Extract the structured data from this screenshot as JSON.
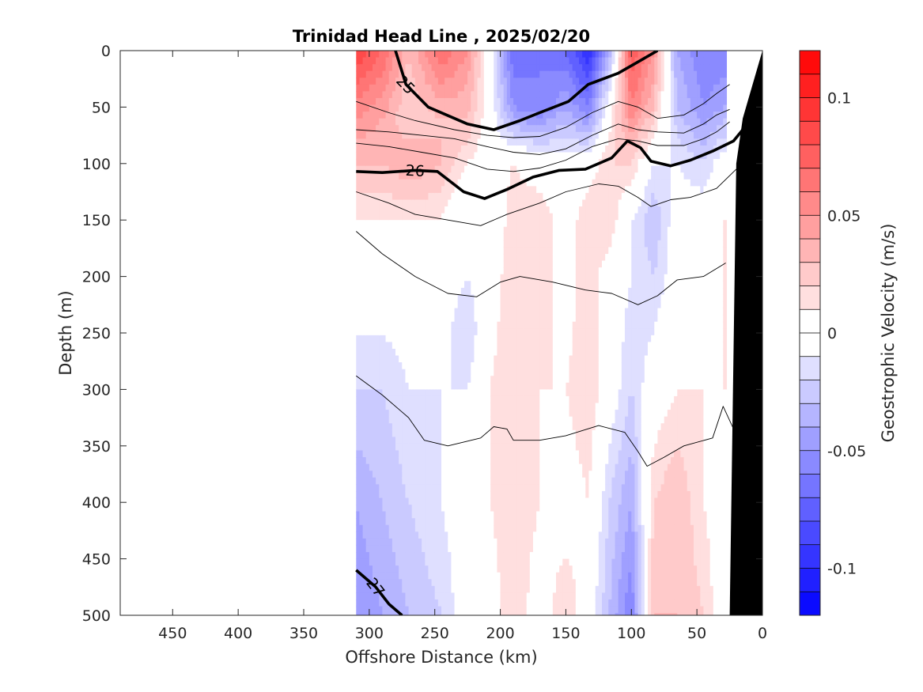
{
  "chart_data": {
    "type": "heatmap",
    "title": "Trinidad Head Line , 2025/02/20",
    "xlabel": "Offshore Distance (km)",
    "ylabel": "Depth (m)",
    "xlim": [
      490,
      0
    ],
    "ylim": [
      0,
      500
    ],
    "x_reversed": true,
    "y_reversed": true,
    "xticks": [
      450,
      400,
      350,
      300,
      250,
      200,
      150,
      100,
      50,
      0
    ],
    "yticks": [
      0,
      50,
      100,
      150,
      200,
      250,
      300,
      350,
      400,
      450,
      500
    ],
    "colorbar": {
      "label": "Geostrophic Velocity (m/s)",
      "range": [
        -0.12,
        0.12
      ],
      "levels": 24,
      "ticks": [
        0.1,
        0.05,
        0,
        -0.05,
        -0.1
      ],
      "tick_labels": [
        "0.1",
        "0.05",
        "0",
        "-0.05",
        "-0.1"
      ],
      "colormap": "blue-white-red",
      "negative_color": "#0000ff",
      "positive_color": "#ff0000"
    },
    "grid": false,
    "velocity_columns": [
      {
        "x": 310,
        "profile": [
          [
            0,
            0.09
          ],
          [
            60,
            0.05
          ],
          [
            100,
            0.03
          ],
          [
            150,
            0.01
          ],
          [
            200,
            0.0
          ],
          [
            250,
            -0.01
          ],
          [
            300,
            -0.02
          ],
          [
            400,
            -0.04
          ],
          [
            500,
            -0.05
          ]
        ]
      },
      {
        "x": 290,
        "profile": [
          [
            0,
            0.07
          ],
          [
            60,
            0.04
          ],
          [
            100,
            0.03
          ],
          [
            150,
            0.01
          ],
          [
            200,
            0.0
          ],
          [
            250,
            -0.01
          ],
          [
            300,
            -0.02
          ],
          [
            400,
            -0.03
          ],
          [
            500,
            -0.04
          ]
        ]
      },
      {
        "x": 270,
        "profile": [
          [
            0,
            0.03
          ],
          [
            60,
            0.02
          ],
          [
            100,
            0.04
          ],
          [
            150,
            0.01
          ],
          [
            200,
            0.0
          ],
          [
            300,
            -0.01
          ],
          [
            400,
            -0.02
          ],
          [
            500,
            -0.03
          ]
        ]
      },
      {
        "x": 245,
        "profile": [
          [
            0,
            0.07
          ],
          [
            60,
            0.03
          ],
          [
            100,
            0.03
          ],
          [
            150,
            0.01
          ],
          [
            200,
            0.0
          ],
          [
            300,
            -0.01
          ],
          [
            400,
            -0.01
          ],
          [
            500,
            -0.02
          ]
        ]
      },
      {
        "x": 225,
        "profile": [
          [
            0,
            0.05
          ],
          [
            60,
            0.03
          ],
          [
            100,
            0.01
          ],
          [
            150,
            -0.01
          ],
          [
            200,
            -0.01
          ],
          [
            250,
            -0.02
          ],
          [
            300,
            -0.01
          ],
          [
            400,
            0.0
          ],
          [
            500,
            0.0
          ]
        ]
      },
      {
        "x": 208,
        "profile": [
          [
            0,
            0.0
          ],
          [
            60,
            0.0
          ],
          [
            100,
            0.0
          ],
          [
            150,
            -0.01
          ],
          [
            200,
            0.0
          ],
          [
            300,
            0.01
          ],
          [
            400,
            0.01
          ],
          [
            500,
            0.0
          ]
        ]
      },
      {
        "x": 190,
        "profile": [
          [
            0,
            -0.07
          ],
          [
            50,
            -0.05
          ],
          [
            100,
            0.01
          ],
          [
            150,
            0.02
          ],
          [
            200,
            0.02
          ],
          [
            300,
            0.02
          ],
          [
            400,
            0.02
          ],
          [
            500,
            0.02
          ]
        ]
      },
      {
        "x": 170,
        "profile": [
          [
            0,
            -0.06
          ],
          [
            50,
            -0.06
          ],
          [
            100,
            0.0
          ],
          [
            150,
            0.02
          ],
          [
            200,
            0.02
          ],
          [
            300,
            0.01
          ],
          [
            400,
            0.01
          ],
          [
            500,
            0.0
          ]
        ]
      },
      {
        "x": 150,
        "profile": [
          [
            0,
            -0.07
          ],
          [
            50,
            -0.04
          ],
          [
            100,
            0.0
          ],
          [
            150,
            0.0
          ],
          [
            200,
            0.0
          ],
          [
            300,
            0.01
          ],
          [
            400,
            0.0
          ],
          [
            500,
            0.02
          ]
        ]
      },
      {
        "x": 133,
        "profile": [
          [
            0,
            -0.1
          ],
          [
            50,
            -0.06
          ],
          [
            100,
            0.0
          ],
          [
            150,
            0.02
          ],
          [
            200,
            0.02
          ],
          [
            300,
            0.02
          ],
          [
            400,
            0.01
          ],
          [
            500,
            0.0
          ]
        ]
      },
      {
        "x": 117,
        "profile": [
          [
            0,
            -0.04
          ],
          [
            50,
            0.0
          ],
          [
            100,
            0.02
          ],
          [
            150,
            0.02
          ],
          [
            200,
            0.0
          ],
          [
            300,
            0.0
          ],
          [
            400,
            -0.02
          ],
          [
            500,
            -0.03
          ]
        ]
      },
      {
        "x": 100,
        "profile": [
          [
            0,
            0.08
          ],
          [
            50,
            0.06
          ],
          [
            100,
            0.02
          ],
          [
            150,
            -0.01
          ],
          [
            200,
            -0.01
          ],
          [
            300,
            -0.02
          ],
          [
            400,
            -0.04
          ],
          [
            500,
            -0.06
          ]
        ]
      },
      {
        "x": 83,
        "profile": [
          [
            0,
            0.05
          ],
          [
            50,
            0.03
          ],
          [
            100,
            -0.01
          ],
          [
            150,
            -0.03
          ],
          [
            200,
            -0.02
          ],
          [
            300,
            0.0
          ],
          [
            400,
            0.02
          ],
          [
            500,
            0.03
          ]
        ]
      },
      {
        "x": 65,
        "profile": [
          [
            0,
            -0.04
          ],
          [
            50,
            -0.03
          ],
          [
            100,
            -0.01
          ],
          [
            150,
            0.0
          ],
          [
            200,
            0.0
          ],
          [
            300,
            0.01
          ],
          [
            400,
            0.03
          ],
          [
            500,
            0.03
          ]
        ]
      },
      {
        "x": 45,
        "profile": [
          [
            0,
            -0.06
          ],
          [
            50,
            -0.05
          ],
          [
            100,
            -0.02
          ],
          [
            150,
            0.0
          ],
          [
            200,
            0.0
          ],
          [
            300,
            0.01
          ],
          [
            400,
            0.01
          ],
          [
            500,
            0.02
          ]
        ]
      },
      {
        "x": 30,
        "profile": [
          [
            0,
            -0.06
          ],
          [
            50,
            -0.04
          ],
          [
            100,
            0.0
          ],
          [
            150,
            0.01
          ],
          [
            200,
            0.01
          ],
          [
            300,
            0.01
          ],
          [
            400,
            0.0
          ],
          [
            500,
            0.0
          ]
        ]
      }
    ],
    "density_contours": [
      {
        "level": 25,
        "label": "25",
        "major": true,
        "points": [
          [
            280,
            0
          ],
          [
            272,
            30
          ],
          [
            255,
            50
          ],
          [
            225,
            65
          ],
          [
            205,
            70
          ],
          [
            185,
            62
          ],
          [
            170,
            55
          ],
          [
            148,
            45
          ],
          [
            133,
            30
          ],
          [
            110,
            20
          ],
          [
            95,
            10
          ],
          [
            80,
            0
          ]
        ]
      },
      {
        "level": 26,
        "label": "26",
        "major": true,
        "points": [
          [
            310,
            107
          ],
          [
            290,
            108
          ],
          [
            265,
            106
          ],
          [
            248,
            107
          ],
          [
            228,
            125
          ],
          [
            212,
            131
          ],
          [
            195,
            123
          ],
          [
            175,
            112
          ],
          [
            155,
            106
          ],
          [
            135,
            105
          ],
          [
            115,
            95
          ],
          [
            103,
            80
          ],
          [
            93,
            86
          ],
          [
            85,
            98
          ],
          [
            70,
            102
          ],
          [
            55,
            97
          ],
          [
            38,
            89
          ],
          [
            22,
            80
          ],
          [
            15,
            70
          ]
        ]
      },
      {
        "level": 26.5,
        "label": "",
        "major": false,
        "points": [
          [
            310,
            125
          ],
          [
            285,
            135
          ],
          [
            265,
            145
          ],
          [
            240,
            150
          ],
          [
            215,
            155
          ],
          [
            195,
            145
          ],
          [
            170,
            135
          ],
          [
            150,
            125
          ],
          [
            125,
            118
          ],
          [
            110,
            120
          ],
          [
            95,
            130
          ],
          [
            85,
            138
          ],
          [
            70,
            132
          ],
          [
            55,
            130
          ],
          [
            35,
            122
          ],
          [
            20,
            105
          ]
        ]
      },
      {
        "level": 26.8,
        "label": "",
        "major": false,
        "points": [
          [
            310,
            160
          ],
          [
            290,
            180
          ],
          [
            265,
            200
          ],
          [
            240,
            215
          ],
          [
            218,
            218
          ],
          [
            200,
            205
          ],
          [
            185,
            200
          ],
          [
            160,
            205
          ],
          [
            135,
            212
          ],
          [
            115,
            215
          ],
          [
            95,
            225
          ],
          [
            80,
            217
          ],
          [
            65,
            203
          ],
          [
            45,
            200
          ],
          [
            28,
            188
          ]
        ]
      },
      {
        "level": 27,
        "label": "27",
        "major": true,
        "points": [
          [
            310,
            460
          ],
          [
            295,
            475
          ],
          [
            285,
            490
          ],
          [
            275,
            500
          ]
        ]
      },
      {
        "level": 27.1,
        "label": "",
        "major": false,
        "points": [
          [
            310,
            288
          ],
          [
            290,
            305
          ],
          [
            270,
            325
          ],
          [
            258,
            345
          ],
          [
            240,
            350
          ],
          [
            215,
            343
          ],
          [
            205,
            333
          ],
          [
            195,
            335
          ],
          [
            190,
            345
          ],
          [
            170,
            345
          ],
          [
            150,
            341
          ],
          [
            125,
            332
          ],
          [
            105,
            338
          ],
          [
            95,
            355
          ],
          [
            88,
            368
          ],
          [
            75,
            360
          ],
          [
            60,
            350
          ],
          [
            38,
            343
          ],
          [
            30,
            315
          ],
          [
            22,
            335
          ]
        ]
      }
    ],
    "extra_contours": [
      [
        [
          310,
          45
        ],
        [
          285,
          55
        ],
        [
          265,
          62
        ],
        [
          235,
          70
        ],
        [
          210,
          75
        ],
        [
          190,
          77
        ],
        [
          170,
          76
        ],
        [
          150,
          68
        ],
        [
          130,
          55
        ],
        [
          110,
          45
        ],
        [
          95,
          50
        ],
        [
          80,
          60
        ],
        [
          60,
          57
        ],
        [
          45,
          47
        ],
        [
          35,
          38
        ],
        [
          25,
          30
        ]
      ],
      [
        [
          310,
          70
        ],
        [
          285,
          72
        ],
        [
          260,
          75
        ],
        [
          235,
          78
        ],
        [
          210,
          85
        ],
        [
          190,
          90
        ],
        [
          170,
          92
        ],
        [
          150,
          87
        ],
        [
          130,
          75
        ],
        [
          110,
          65
        ],
        [
          95,
          70
        ],
        [
          80,
          72
        ],
        [
          60,
          73
        ],
        [
          45,
          65
        ],
        [
          35,
          57
        ],
        [
          25,
          52
        ]
      ],
      [
        [
          310,
          82
        ],
        [
          285,
          85
        ],
        [
          260,
          90
        ],
        [
          235,
          95
        ],
        [
          210,
          105
        ],
        [
          190,
          107
        ],
        [
          170,
          104
        ],
        [
          150,
          97
        ],
        [
          130,
          85
        ],
        [
          110,
          78
        ],
        [
          95,
          80
        ],
        [
          80,
          84
        ],
        [
          60,
          84
        ],
        [
          45,
          78
        ],
        [
          35,
          72
        ],
        [
          25,
          63
        ]
      ]
    ],
    "bathymetry": [
      [
        25,
        500
      ],
      [
        20,
        100
      ],
      [
        15,
        60
      ],
      [
        0,
        0
      ],
      [
        0,
        500
      ]
    ]
  }
}
